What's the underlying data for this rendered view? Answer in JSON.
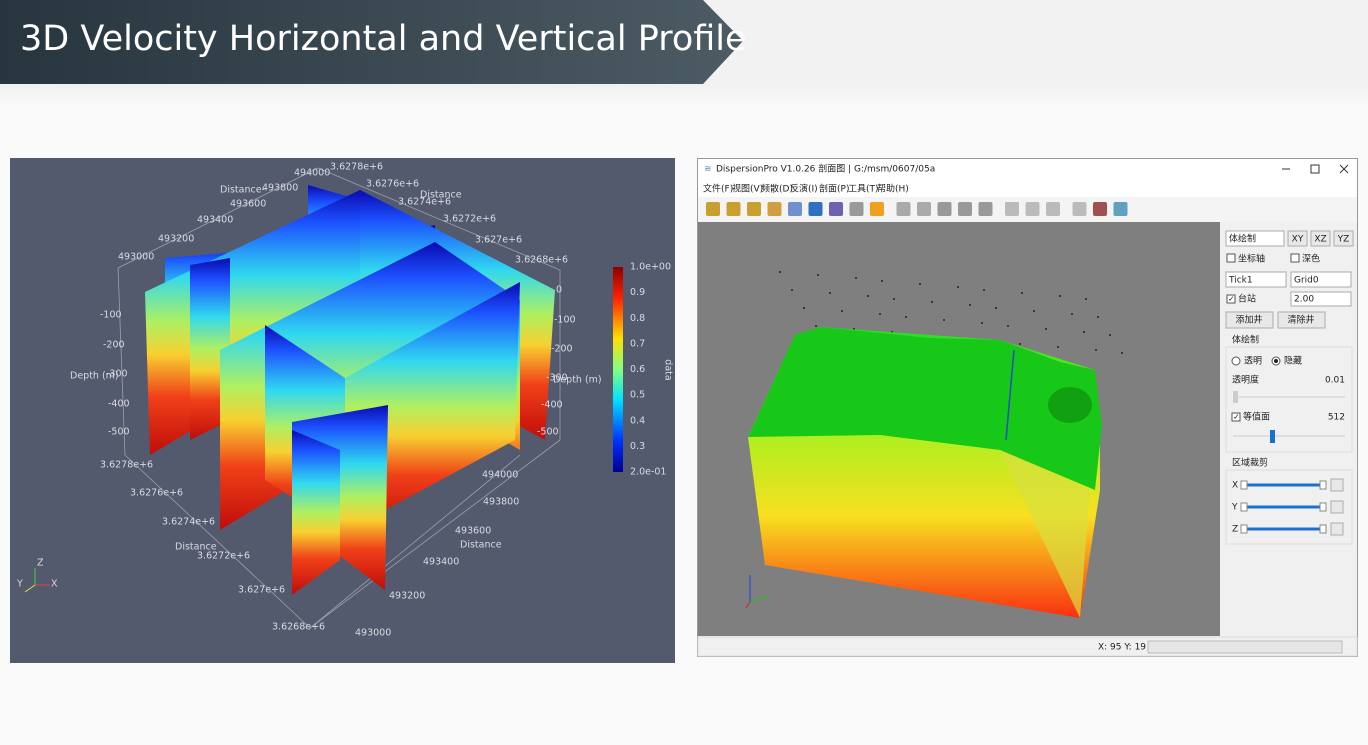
{
  "header": {
    "title": "3D Velocity Horizontal and Vertical Profile"
  },
  "left_view": {
    "top_distance_label": "Distance-",
    "top_distance_ticks": [
      "494000",
      "493800",
      "493600",
      "493400",
      "493200",
      "493000"
    ],
    "top_northing_label": "Distance",
    "top_northing_ticks": [
      "3.6278e+6",
      "3.6276e+6",
      "3.6274e+6",
      "3.6272e+6",
      "3.627e+6",
      "3.6268e+6"
    ],
    "left_depth_label": "Depth (m)",
    "left_depth_ticks": [
      "-100",
      "-200",
      "-300",
      "-400",
      "-500"
    ],
    "right_depth_label": "Depth (m)",
    "right_depth_ticks": [
      "0",
      "-100",
      "-200",
      "-300",
      "-400",
      "-500"
    ],
    "bottom_northing_label": "Distance",
    "bottom_northing_ticks": [
      "3.6278e+6",
      "3.6276e+6",
      "3.6274e+6",
      "3.6272e+6",
      "3.627e+6",
      "3.6268e+6"
    ],
    "bottom_distance_label": "Distance",
    "bottom_distance_ticks": [
      "494000",
      "493800",
      "493600",
      "493400",
      "493200",
      "493000"
    ],
    "colorbar": {
      "title": "data",
      "ticks": [
        "1.0e+00",
        "0.9",
        "0.8",
        "0.7",
        "0.6",
        "0.5",
        "0.4",
        "0.3",
        "2.0e-01"
      ]
    },
    "orientation": [
      "Z",
      "Y",
      "X"
    ]
  },
  "app": {
    "title": "DispersionPro V1.0.26 剖面图 | G:/msm/0607/05a",
    "menu": [
      "文件(F)",
      "视图(V)",
      "频散(D)",
      "反演(I)",
      "剖面(P)",
      "工具(T)",
      "帮助(H)"
    ],
    "panel": {
      "mode": "体绘制",
      "views": [
        "XY",
        "XZ",
        "YZ"
      ],
      "axis": "坐标轴",
      "dark": "深色",
      "tick": "Tick1",
      "grid": "Grid0",
      "station": "台站",
      "station_size": "2.00",
      "add_well": "添加井",
      "clear_well": "清除井",
      "render_group": "体绘制",
      "transparent": "透明",
      "hidden": "隐藏",
      "opacity_label": "透明度",
      "opacity_value": "0.01",
      "isosurface": "等值面",
      "isosurface_value": "512",
      "clip_group": "区域裁剪",
      "clip_axes": [
        "X",
        "Y",
        "Z"
      ]
    },
    "status": "X: 95 Y: 19"
  }
}
